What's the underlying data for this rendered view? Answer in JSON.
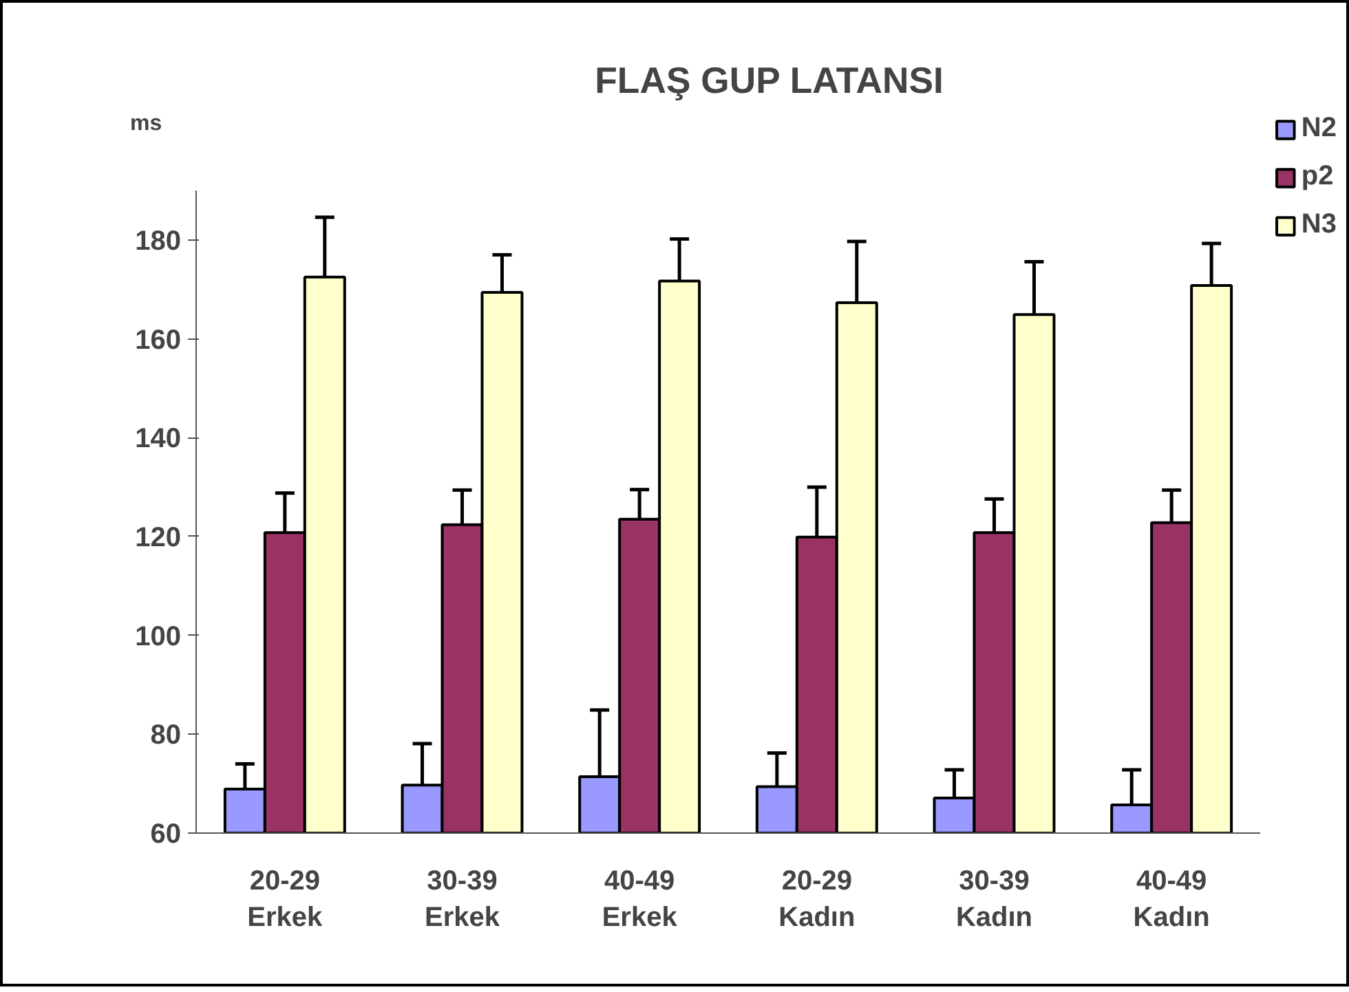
{
  "chart_data": {
    "type": "bar",
    "title": "FLAŞ GUP LATANSI",
    "ylabel": "ms",
    "categories": [
      "20-29\nErkek",
      "30-39\nErkek",
      "40-49\nErkek",
      "20-29\nKadın",
      "30-39\nKadın",
      "40-49\nKadın"
    ],
    "series": [
      {
        "name": "N2",
        "color": "#9999ff",
        "values": [
          68.9,
          69.7,
          71.4,
          69.4,
          67.1,
          65.7
        ],
        "errors": [
          [
            68.9,
            74.0
          ],
          [
            69.7,
            78.1
          ],
          [
            71.4,
            84.9
          ],
          [
            69.4,
            76.2
          ],
          [
            67.1,
            72.8
          ],
          [
            65.7,
            72.8
          ]
        ]
      },
      {
        "name": "p2",
        "color": "#993366",
        "values": [
          120.8,
          122.4,
          123.5,
          119.9,
          120.8,
          122.8
        ],
        "errors": [
          [
            120.8,
            128.8
          ],
          [
            122.4,
            129.4
          ],
          [
            123.5,
            129.5
          ],
          [
            119.9,
            130.0
          ],
          [
            120.8,
            127.6
          ],
          [
            122.8,
            129.4
          ]
        ]
      },
      {
        "name": "N3",
        "color": "#ffffcc",
        "values": [
          172.5,
          169.4,
          171.7,
          167.3,
          164.9,
          170.8
        ],
        "errors": [
          [
            172.5,
            184.6
          ],
          [
            169.4,
            177.0
          ],
          [
            171.7,
            180.2
          ],
          [
            167.3,
            179.7
          ],
          [
            164.9,
            175.6
          ],
          [
            170.8,
            179.3
          ]
        ]
      }
    ],
    "ylim": [
      60,
      190
    ],
    "yticks": [
      60,
      80,
      100,
      120,
      140,
      160,
      180
    ],
    "grid": false,
    "legend": "top right"
  }
}
